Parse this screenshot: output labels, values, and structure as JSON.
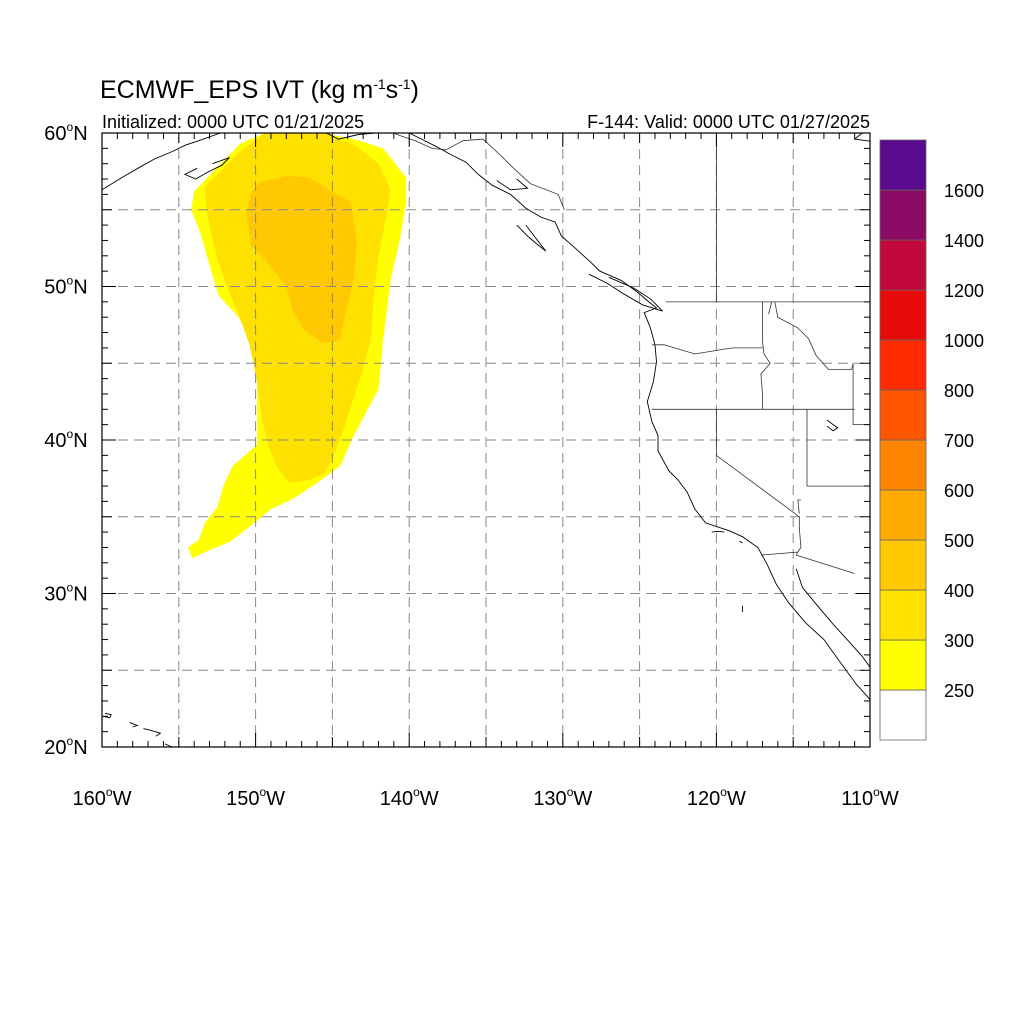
{
  "title": {
    "text": "ECMWF_EPS IVT (kg m",
    "exp1": "-1",
    "mid": "s",
    "exp2": "-1",
    "close": ")"
  },
  "init_label": "Initialized: 0000 UTC 01/21/2025",
  "valid_label": "F-144: Valid: 0000 UTC 01/27/2025",
  "lat_labels": [
    "60",
    "50",
    "40",
    "30",
    "20"
  ],
  "lon_labels": [
    "160",
    "150",
    "140",
    "130",
    "120",
    "110"
  ],
  "lat_suffix": "N",
  "lon_suffix": "W",
  "deg_symbol": "o",
  "colorbar": {
    "labels": [
      "250",
      "300",
      "400",
      "500",
      "600",
      "700",
      "800",
      "1000",
      "1200",
      "1400",
      "1600"
    ],
    "colors": [
      "#ffffff",
      "#ffff00",
      "#ffe100",
      "#ffc800",
      "#ffaa00",
      "#ff8400",
      "#ff5500",
      "#ff2a00",
      "#e60a0a",
      "#c0083c",
      "#8a0a64",
      "#5a0a8c"
    ]
  },
  "map_data": {
    "extent": {
      "lon": [
        -160,
        -110
      ],
      "lat": [
        20,
        60
      ]
    },
    "grid_lon": [
      -155,
      -150,
      -145,
      -140,
      -135,
      -130,
      -125,
      -120,
      -115
    ],
    "grid_lat": [
      25,
      30,
      35,
      40,
      45,
      50,
      55
    ],
    "ivt_regions": [
      {
        "level": "250-300",
        "color": "#ffff00",
        "outline": [
          [
            -154,
            56.2
          ],
          [
            -151,
            59.3
          ],
          [
            -149.4,
            60
          ],
          [
            -145.5,
            60
          ],
          [
            -143.2,
            59.5
          ],
          [
            -141.7,
            59.0
          ],
          [
            -140.2,
            57.1
          ],
          [
            -140.2,
            55.5
          ],
          [
            -140.6,
            53.1
          ],
          [
            -141.2,
            50.5
          ],
          [
            -141.7,
            46.5
          ],
          [
            -142.0,
            43.3
          ],
          [
            -142.6,
            42.2
          ],
          [
            -143.6,
            40.3
          ],
          [
            -144.5,
            38.3
          ],
          [
            -146.0,
            37.2
          ],
          [
            -147.5,
            36.2
          ],
          [
            -149.0,
            35.5
          ],
          [
            -150.2,
            34.5
          ],
          [
            -151.6,
            33.4
          ],
          [
            -152.6,
            33.0
          ],
          [
            -153.5,
            32.6
          ],
          [
            -154.1,
            32.3
          ],
          [
            -154.4,
            33.0
          ],
          [
            -153.7,
            33.5
          ],
          [
            -153.3,
            34.6
          ],
          [
            -152.5,
            35.6
          ],
          [
            -152.1,
            37.0
          ],
          [
            -151.5,
            38.3
          ],
          [
            -149.9,
            39.7
          ],
          [
            -149.9,
            41.7
          ],
          [
            -149.9,
            44.0
          ],
          [
            -150.2,
            46.3
          ],
          [
            -151.1,
            48.0
          ],
          [
            -152.4,
            49.4
          ],
          [
            -153.0,
            51.4
          ],
          [
            -153.6,
            53.5
          ],
          [
            -154.2,
            55.0
          ]
        ]
      },
      {
        "level": "300-400",
        "color": "#ffe100",
        "outline": [
          [
            -153.3,
            56.5
          ],
          [
            -151.0,
            58.8
          ],
          [
            -149.4,
            60
          ],
          [
            -145.5,
            60
          ],
          [
            -143.5,
            59.2
          ],
          [
            -142.0,
            58.0
          ],
          [
            -141.2,
            56.3
          ],
          [
            -141.5,
            54.5
          ],
          [
            -142.0,
            52.0
          ],
          [
            -142.3,
            49.5
          ],
          [
            -142.5,
            46.5
          ],
          [
            -143.1,
            44.3
          ],
          [
            -143.7,
            42.5
          ],
          [
            -144.2,
            40.9
          ],
          [
            -144.8,
            39.3
          ],
          [
            -145.5,
            37.8
          ],
          [
            -146.5,
            37.4
          ],
          [
            -147.8,
            37.2
          ],
          [
            -148.6,
            38.2
          ],
          [
            -149.2,
            39.7
          ],
          [
            -149.6,
            41.5
          ],
          [
            -149.9,
            43.8
          ],
          [
            -150.4,
            46.2
          ],
          [
            -151.0,
            47.9
          ],
          [
            -151.7,
            49.6
          ],
          [
            -152.4,
            51.5
          ],
          [
            -152.9,
            53.5
          ],
          [
            -153.2,
            55.0
          ]
        ]
      },
      {
        "level": "400-500",
        "color": "#ffc800",
        "outline": [
          [
            -149.7,
            56.8
          ],
          [
            -148.0,
            57.2
          ],
          [
            -146.5,
            57.1
          ],
          [
            -145.2,
            56.3
          ],
          [
            -143.8,
            55.5
          ],
          [
            -143.4,
            53.0
          ],
          [
            -143.6,
            50.5
          ],
          [
            -144.2,
            48.0
          ],
          [
            -144.5,
            46.5
          ],
          [
            -145.6,
            46.3
          ],
          [
            -146.8,
            47.1
          ],
          [
            -147.6,
            48.5
          ],
          [
            -148.0,
            50.0
          ],
          [
            -149.2,
            51.5
          ],
          [
            -150.3,
            52.7
          ],
          [
            -150.6,
            54.7
          ],
          [
            -150.3,
            56.1
          ]
        ]
      }
    ],
    "coastlines": [
      [
        [
          -160,
          56.3
        ],
        [
          -158.7,
          57.1
        ],
        [
          -157.5,
          57.8
        ],
        [
          -156.6,
          58.3
        ],
        [
          -155.4,
          58.8
        ],
        [
          -154.6,
          59.2
        ],
        [
          -153.7,
          59.5
        ],
        [
          -152.3,
          60.0
        ]
      ],
      [
        [
          -152.8,
          58.0
        ],
        [
          -151.7,
          58.4
        ],
        [
          -152.2,
          57.9
        ],
        [
          -153.2,
          57.4
        ],
        [
          -153.9,
          57.0
        ],
        [
          -154.6,
          57.3
        ],
        [
          -153.8,
          57.7
        ]
      ],
      [
        [
          -145.4,
          60
        ],
        [
          -144.6,
          59.6
        ],
        [
          -143.3,
          59.9
        ],
        [
          -142.2,
          60
        ]
      ],
      [
        [
          -140,
          60
        ],
        [
          -139.2,
          59.6
        ],
        [
          -138.2,
          59.1
        ],
        [
          -137.3,
          58.6
        ],
        [
          -136.3,
          58.1
        ],
        [
          -135.5,
          57.3
        ],
        [
          -134.6,
          56.6
        ],
        [
          -133.4,
          56.0
        ],
        [
          -132.4,
          55.1
        ],
        [
          -131.4,
          54.5
        ],
        [
          -130.5,
          54.2
        ],
        [
          -130.1,
          53.3
        ],
        [
          -129.2,
          52.5
        ],
        [
          -128.2,
          51.6
        ],
        [
          -127.6,
          51.0
        ],
        [
          -126.2,
          50.4
        ],
        [
          -125.1,
          49.6
        ],
        [
          -124.4,
          49.0
        ],
        [
          -123.9,
          48.6
        ],
        [
          -124.7,
          48.3
        ],
        [
          -124.3,
          47.3
        ],
        [
          -124.0,
          46.2
        ],
        [
          -123.9,
          45.1
        ],
        [
          -124.1,
          43.8
        ],
        [
          -124.5,
          42.5
        ],
        [
          -124.2,
          41.2
        ],
        [
          -123.8,
          40.3
        ],
        [
          -123.8,
          39.3
        ],
        [
          -123.1,
          38.0
        ],
        [
          -122.5,
          37.4
        ],
        [
          -121.9,
          36.6
        ],
        [
          -121.4,
          35.5
        ],
        [
          -120.7,
          34.6
        ],
        [
          -119.2,
          34.1
        ],
        [
          -118.3,
          33.7
        ],
        [
          -117.3,
          33.0
        ],
        [
          -116.7,
          31.9
        ],
        [
          -116.1,
          30.6
        ],
        [
          -115.3,
          29.4
        ],
        [
          -114.2,
          28.1
        ],
        [
          -113.0,
          27.0
        ],
        [
          -112.0,
          25.6
        ],
        [
          -110.9,
          24.1
        ],
        [
          -110,
          23.1
        ]
      ],
      [
        [
          -114.8,
          31.6
        ],
        [
          -114.4,
          30.4
        ],
        [
          -113.5,
          29.3
        ],
        [
          -112.4,
          28.0
        ],
        [
          -111.4,
          26.9
        ],
        [
          -110.5,
          25.9
        ],
        [
          -110,
          25.2
        ]
      ],
      [
        [
          -132.4,
          54.0
        ],
        [
          -131.8,
          53.2
        ],
        [
          -131.1,
          52.3
        ],
        [
          -131.6,
          52.7
        ],
        [
          -132.2,
          53.2
        ],
        [
          -133.0,
          54.0
        ]
      ],
      [
        [
          -128.3,
          50.8
        ],
        [
          -127.1,
          50.2
        ],
        [
          -126.0,
          49.5
        ],
        [
          -124.8,
          48.8
        ],
        [
          -123.5,
          48.4
        ],
        [
          -124.3,
          49.2
        ],
        [
          -125.4,
          49.9
        ],
        [
          -127.0,
          50.6
        ]
      ],
      [
        [
          -133.0,
          57.0
        ],
        [
          -132.3,
          56.4
        ],
        [
          -133.4,
          56.3
        ],
        [
          -134.3,
          56.9
        ]
      ],
      [
        [
          -159.8,
          22.2
        ],
        [
          -159.4,
          22.1
        ],
        [
          -159.5,
          21.9
        ],
        [
          -159.9,
          22.0
        ]
      ],
      [
        [
          -158.2,
          21.6
        ],
        [
          -157.7,
          21.4
        ],
        [
          -158.0,
          21.3
        ]
      ],
      [
        [
          -157.3,
          21.2
        ],
        [
          -156.9,
          21.1
        ],
        [
          -156.2,
          20.9
        ],
        [
          -156.5,
          20.7
        ]
      ],
      [
        [
          -155.9,
          20.2
        ],
        [
          -155.0,
          19.8
        ],
        [
          -155.6,
          19.9
        ]
      ],
      [
        [
          -119.5,
          34.0
        ],
        [
          -119.9,
          34.05
        ],
        [
          -120.3,
          34.0
        ]
      ],
      [
        [
          -118.5,
          33.4
        ],
        [
          -118.3,
          33.3
        ]
      ],
      [
        [
          -118.3,
          29.2
        ],
        [
          -118.3,
          28.8
        ]
      ],
      [
        [
          -112.8,
          41.3
        ],
        [
          -112.4,
          41.0
        ],
        [
          -112.1,
          40.8
        ],
        [
          -112.4,
          40.6
        ],
        [
          -112.8,
          40.9
        ]
      ],
      [
        [
          -110.5,
          60.0
        ],
        [
          -111.0,
          59.6
        ],
        [
          -109.5,
          59.4
        ]
      ]
    ],
    "borders": [
      [
        [
          -141.0,
          60
        ],
        [
          -140.5,
          59.8
        ],
        [
          -139.6,
          59.5
        ],
        [
          -138.5,
          59.0
        ],
        [
          -137.6,
          58.9
        ],
        [
          -136.5,
          59.5
        ],
        [
          -135.2,
          59.6
        ],
        [
          -134.0,
          58.5
        ],
        [
          -133.2,
          57.7
        ],
        [
          -132.1,
          56.7
        ],
        [
          -130.3,
          56.0
        ],
        [
          -129.9,
          55.0
        ]
      ],
      [
        [
          -123.3,
          49
        ],
        [
          -110,
          49
        ]
      ],
      [
        [
          -120,
          60
        ],
        [
          -120,
          49
        ]
      ],
      [
        [
          -124.2,
          46.2
        ],
        [
          -123.4,
          46.2
        ],
        [
          -121.4,
          45.6
        ],
        [
          -119.6,
          45.9
        ],
        [
          -118.9,
          46.0
        ],
        [
          -117.0,
          46.0
        ]
      ],
      [
        [
          -117.0,
          49
        ],
        [
          -117.0,
          46.4
        ],
        [
          -116.9,
          45.6
        ],
        [
          -116.5,
          45.0
        ],
        [
          -117.1,
          44.3
        ],
        [
          -117.0,
          43.0
        ],
        [
          -117.0,
          42.0
        ]
      ],
      [
        [
          -124.2,
          42.0
        ],
        [
          -111.0,
          42.0
        ]
      ],
      [
        [
          -120,
          42.0
        ],
        [
          -120,
          39.0
        ],
        [
          -114.6,
          35.0
        ],
        [
          -114.6,
          34.3
        ],
        [
          -114.5,
          33.0
        ],
        [
          -114.7,
          32.7
        ]
      ],
      [
        [
          -114.1,
          42.0
        ],
        [
          -114.1,
          37.0
        ]
      ],
      [
        [
          -114.1,
          37.0
        ],
        [
          -110,
          37.0
        ]
      ],
      [
        [
          -114.5,
          36.1
        ],
        [
          -114.7,
          36.1
        ],
        [
          -114.6,
          35.2
        ]
      ],
      [
        [
          -116.2,
          49
        ],
        [
          -116.0,
          48.0
        ],
        [
          -114.7,
          47.3
        ],
        [
          -114.0,
          46.6
        ],
        [
          -113.5,
          45.5
        ],
        [
          -112.7,
          44.6
        ],
        [
          -111.2,
          44.6
        ],
        [
          -111.1,
          45.0
        ]
      ],
      [
        [
          -111.1,
          45.0
        ],
        [
          -111.1,
          41.0
        ],
        [
          -110,
          41.0
        ]
      ],
      [
        [
          -117.1,
          32.5
        ],
        [
          -114.7,
          32.7
        ],
        [
          -114.8,
          32.5
        ],
        [
          -111.0,
          31.3
        ]
      ],
      [
        [
          -116.4,
          49
        ],
        [
          -116.6,
          48.2
        ]
      ],
      [
        [
          -141.0,
          60
        ],
        [
          -141.0,
          69
        ]
      ]
    ]
  }
}
